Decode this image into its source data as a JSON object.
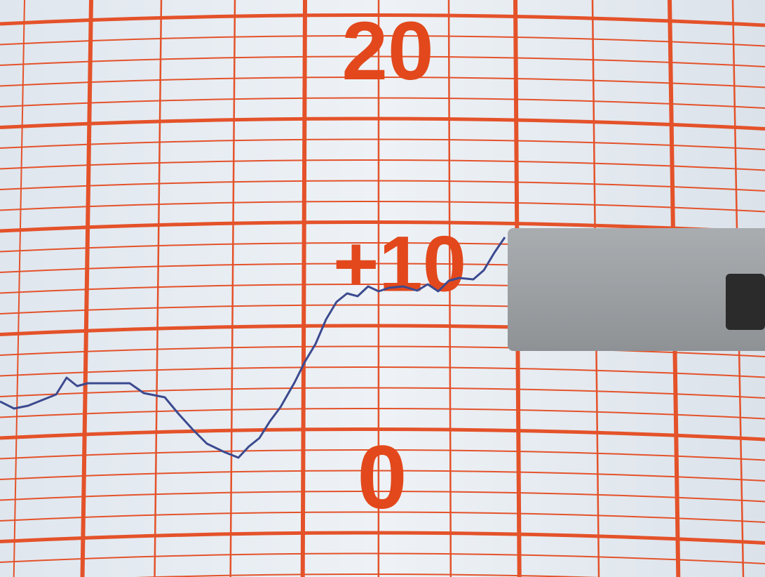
{
  "scale_labels": [
    "20",
    "+10",
    "0"
  ]
}
